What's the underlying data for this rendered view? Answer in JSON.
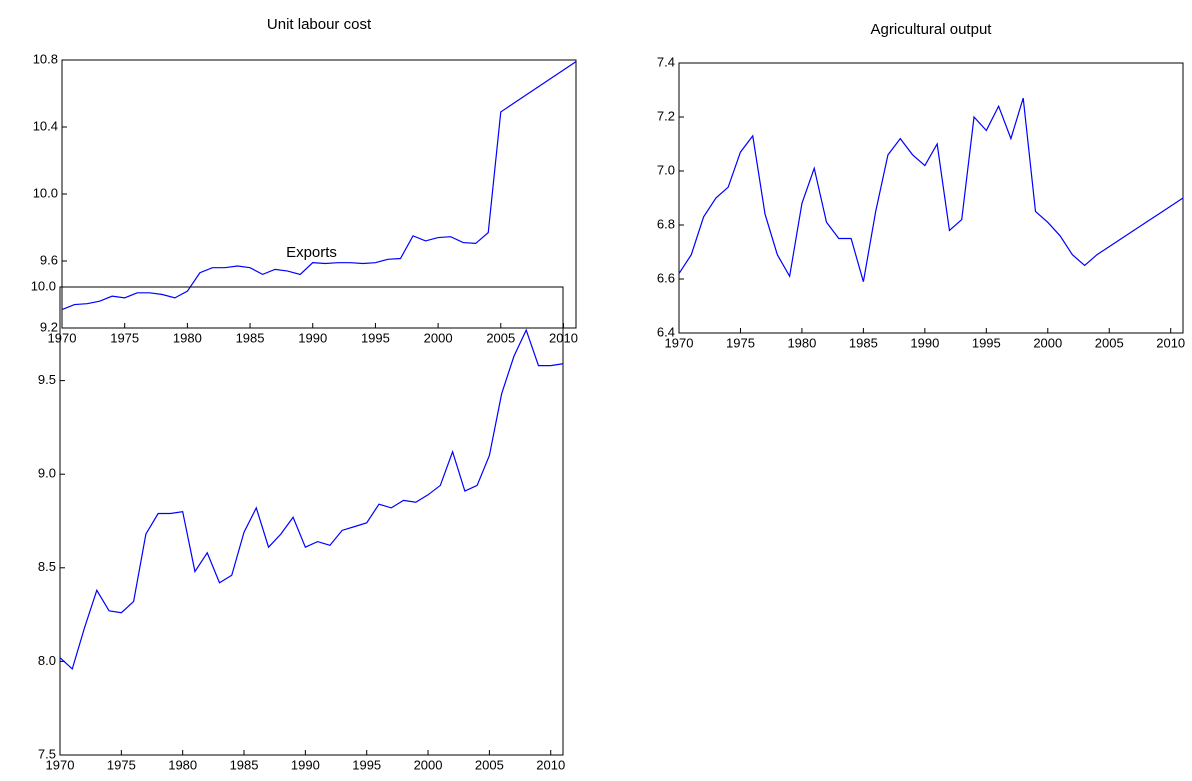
{
  "chart_data": [
    {
      "type": "line",
      "title": "Unit labour cost",
      "color": "#0000ff",
      "x": [
        1970,
        1971,
        1972,
        1973,
        1974,
        1975,
        1976,
        1977,
        1978,
        1979,
        1980,
        1981,
        1982,
        1983,
        1984,
        1985,
        1986,
        1987,
        1988,
        1989,
        1990,
        1991,
        1992,
        1993,
        1994,
        1995,
        1996,
        1997,
        1998,
        1999,
        2000,
        2001,
        2002,
        2003,
        2004,
        2005,
        2006,
        2007,
        2008,
        2009,
        2010,
        2011
      ],
      "values": [
        9.31,
        9.34,
        9.345,
        9.36,
        9.39,
        9.38,
        9.41,
        9.41,
        9.4,
        9.38,
        9.42,
        9.53,
        9.56,
        9.56,
        9.57,
        9.56,
        9.52,
        9.55,
        9.54,
        9.52,
        9.59,
        9.585,
        9.59,
        9.59,
        9.585,
        9.59,
        9.61,
        9.615,
        9.75,
        9.72,
        9.74,
        9.745,
        9.71,
        9.705,
        9.77,
        10.49,
        10.54,
        10.59,
        10.64,
        10.69,
        10.74,
        10.79
      ],
      "xlim": [
        1970,
        2011
      ],
      "xticks": [
        1970,
        1975,
        1980,
        1985,
        1990,
        1995,
        2000,
        2005,
        2010
      ],
      "ylim": [
        9.2,
        10.8
      ],
      "yticks": [
        9.2,
        9.6,
        {
          "value": 10,
          "label": "10.0"
        },
        10.4,
        10.8
      ]
    },
    {
      "type": "line",
      "title": "Agricultural output",
      "color": "#0000ff",
      "x": [
        1970,
        1971,
        1972,
        1973,
        1974,
        1975,
        1976,
        1977,
        1978,
        1979,
        1980,
        1981,
        1982,
        1983,
        1984,
        1985,
        1986,
        1987,
        1988,
        1989,
        1990,
        1991,
        1992,
        1993,
        1994,
        1995,
        1996,
        1997,
        1998,
        1999,
        2000,
        2001,
        2002,
        2003,
        2004,
        2005,
        2006,
        2007,
        2008,
        2009,
        2010,
        2011
      ],
      "values": [
        6.62,
        6.69,
        6.83,
        6.9,
        6.94,
        7.07,
        7.13,
        6.84,
        6.69,
        6.61,
        6.88,
        7.01,
        6.81,
        6.75,
        6.75,
        6.59,
        6.85,
        7.06,
        7.12,
        7.06,
        7.02,
        7.1,
        6.78,
        6.82,
        7.2,
        7.15,
        7.24,
        7.12,
        7.27,
        6.85,
        6.81,
        6.76,
        6.69,
        6.65,
        6.69,
        6.72,
        6.75,
        6.78,
        6.81,
        6.84,
        6.87,
        6.9
      ],
      "xlim": [
        1970,
        2011
      ],
      "xticks": [
        1970,
        1975,
        1980,
        1985,
        1990,
        1995,
        2000,
        2005,
        2010
      ],
      "ylim": [
        6.4,
        7.4
      ],
      "yticks": [
        6.4,
        6.6,
        6.8,
        {
          "value": 7,
          "label": "7.0"
        },
        7.2,
        7.4
      ]
    },
    {
      "type": "line",
      "title": "Exports",
      "color": "#0000ff",
      "x": [
        1970,
        1971,
        1972,
        1973,
        1974,
        1975,
        1976,
        1977,
        1978,
        1979,
        1980,
        1981,
        1982,
        1983,
        1984,
        1985,
        1986,
        1987,
        1988,
        1989,
        1990,
        1991,
        1992,
        1993,
        1994,
        1995,
        1996,
        1997,
        1998,
        1999,
        2000,
        2001,
        2002,
        2003,
        2004,
        2005,
        2006,
        2007,
        2008,
        2009,
        2010,
        2011
      ],
      "values": [
        8.02,
        7.96,
        8.18,
        8.38,
        8.27,
        8.26,
        8.32,
        8.68,
        8.79,
        8.79,
        8.8,
        8.48,
        8.58,
        8.42,
        8.46,
        8.69,
        8.82,
        8.61,
        8.68,
        8.77,
        8.61,
        8.64,
        8.62,
        8.7,
        8.72,
        8.74,
        8.84,
        8.82,
        8.86,
        8.85,
        8.89,
        8.94,
        9.12,
        8.91,
        8.94,
        9.1,
        9.43,
        9.63,
        9.77,
        9.58,
        9.58,
        9.59
      ],
      "xlim": [
        1970,
        2011
      ],
      "xticks": [
        1970,
        1975,
        1980,
        1985,
        1990,
        1995,
        2000,
        2005,
        2010
      ],
      "ylim": [
        7.5,
        10
      ],
      "yticks": [
        7.5,
        {
          "value": 8,
          "label": "8.0"
        },
        8.5,
        {
          "value": 9,
          "label": "9.0"
        },
        9.5,
        {
          "value": 10,
          "label": "10.0"
        }
      ]
    }
  ]
}
